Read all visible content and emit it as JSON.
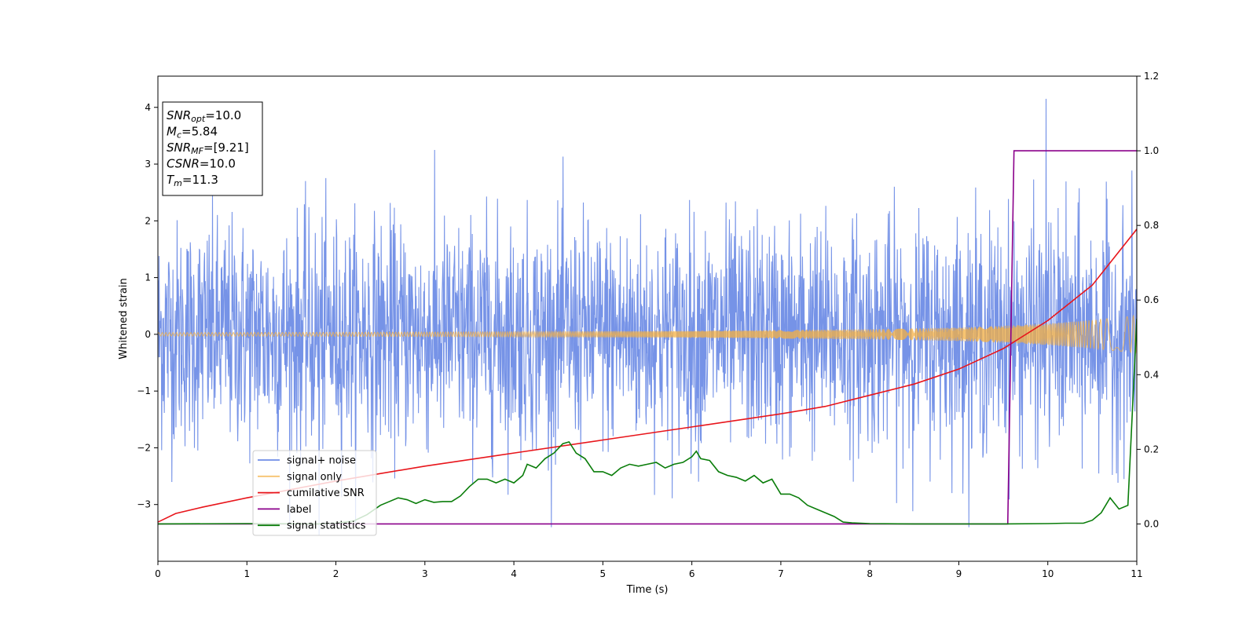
{
  "chart_data": {
    "type": "line",
    "xlabel": "Time (s)",
    "ylabel": "Whitened strain",
    "xlim": [
      0,
      11
    ],
    "ylim": [
      -4.0,
      4.55
    ],
    "y2lim": [
      -0.1,
      1.2
    ],
    "x_ticks": [
      0,
      1,
      2,
      3,
      4,
      5,
      6,
      7,
      8,
      9,
      10,
      11
    ],
    "y_ticks": [
      -3,
      -2,
      -1,
      0,
      1,
      2,
      3,
      4
    ],
    "y_tick_labels": [
      "−3",
      "−2",
      "−1",
      "0",
      "1",
      "2",
      "3",
      "4"
    ],
    "y2_ticks": [
      0.0,
      0.2,
      0.4,
      0.6,
      0.8,
      1.0,
      1.2
    ],
    "y2_tick_labels": [
      "0.0",
      "0.2",
      "0.4",
      "0.6",
      "0.8",
      "1.0",
      "1.2"
    ],
    "grid": false,
    "legend_position": "lower-left",
    "annotation_box": {
      "position": "top-left",
      "lines": [
        {
          "sym": "SNR",
          "sub": "opt",
          "val": "=10.0"
        },
        {
          "sym": "M",
          "sub": "c",
          "val": "=5.84"
        },
        {
          "sym": "SNR",
          "sub": "MF",
          "val": "=[9.21]"
        },
        {
          "sym": "CSNR",
          "sub": "",
          "val": "=10.0"
        },
        {
          "sym": "T",
          "sub": "m",
          "val": "=11.3"
        }
      ]
    },
    "series": [
      {
        "name": "signal+ noise",
        "axis": "left",
        "color": "#6f8de6",
        "style": "dense noisy band about 0, roughly ±1.6 typical with peaks to ~4.2 (near t≈10) and troughs to ~−3.6",
        "typical_amplitude": 1.6,
        "max_peak": {
          "x": 9.98,
          "y": 4.15
        },
        "min_trough": {
          "x": 1.81,
          "y": -3.55
        }
      },
      {
        "name": "signal only",
        "axis": "left",
        "color": "#f5b041",
        "style": "chirp oscillation about 0 with amplitude growing over time",
        "envelope": {
          "x": [
            0,
            2,
            4,
            6,
            8,
            9,
            9.5,
            10,
            10.5,
            11
          ],
          "amplitude": [
            0.03,
            0.035,
            0.045,
            0.06,
            0.09,
            0.12,
            0.15,
            0.19,
            0.25,
            0.33
          ]
        }
      },
      {
        "name": "cumilative SNR",
        "axis": "right",
        "color": "#e8151b",
        "x": [
          0,
          0.2,
          0.5,
          1,
          2,
          3,
          4,
          5,
          6,
          7,
          7.5,
          8,
          8.5,
          9,
          9.5,
          10,
          10.5,
          11
        ],
        "values": [
          0.005,
          0.028,
          0.045,
          0.07,
          0.115,
          0.155,
          0.19,
          0.225,
          0.26,
          0.295,
          0.315,
          0.345,
          0.375,
          0.415,
          0.47,
          0.545,
          0.64,
          0.79
        ]
      },
      {
        "name": "label",
        "axis": "right",
        "color": "#8b008b",
        "x": [
          0,
          9.55,
          9.62,
          11
        ],
        "values": [
          0.0,
          0.0,
          1.0,
          1.0
        ]
      },
      {
        "name": "signal statistics",
        "axis": "right",
        "color": "#0a7d0a",
        "x": [
          0,
          1,
          1.8,
          2,
          2.2,
          2.35,
          2.5,
          2.6,
          2.7,
          2.8,
          2.9,
          3,
          3.1,
          3.2,
          3.3,
          3.4,
          3.5,
          3.6,
          3.7,
          3.8,
          3.9,
          4,
          4.1,
          4.15,
          4.25,
          4.35,
          4.45,
          4.55,
          4.62,
          4.7,
          4.8,
          4.9,
          5,
          5.1,
          5.2,
          5.3,
          5.4,
          5.5,
          5.6,
          5.7,
          5.8,
          5.9,
          6,
          6.05,
          6.1,
          6.2,
          6.3,
          6.4,
          6.5,
          6.6,
          6.7,
          6.8,
          6.9,
          7,
          7.1,
          7.2,
          7.3,
          7.4,
          7.5,
          7.6,
          7.7,
          7.8,
          8,
          8.5,
          9,
          9.5,
          10,
          10.2,
          10.4,
          10.5,
          10.6,
          10.7,
          10.8,
          10.9,
          11
        ],
        "values": [
          0.0,
          0.001,
          0.0,
          0.002,
          0.008,
          0.025,
          0.05,
          0.06,
          0.07,
          0.065,
          0.055,
          0.065,
          0.058,
          0.06,
          0.06,
          0.075,
          0.1,
          0.12,
          0.12,
          0.11,
          0.12,
          0.11,
          0.13,
          0.16,
          0.15,
          0.175,
          0.19,
          0.215,
          0.22,
          0.19,
          0.175,
          0.14,
          0.14,
          0.13,
          0.15,
          0.16,
          0.155,
          0.16,
          0.165,
          0.15,
          0.16,
          0.165,
          0.18,
          0.195,
          0.175,
          0.17,
          0.14,
          0.13,
          0.125,
          0.115,
          0.13,
          0.11,
          0.12,
          0.08,
          0.08,
          0.07,
          0.05,
          0.04,
          0.03,
          0.02,
          0.005,
          0.003,
          0.001,
          0.0,
          0.0,
          0.0,
          0.001,
          0.002,
          0.002,
          0.01,
          0.03,
          0.07,
          0.04,
          0.05,
          0.55
        ]
      }
    ]
  }
}
